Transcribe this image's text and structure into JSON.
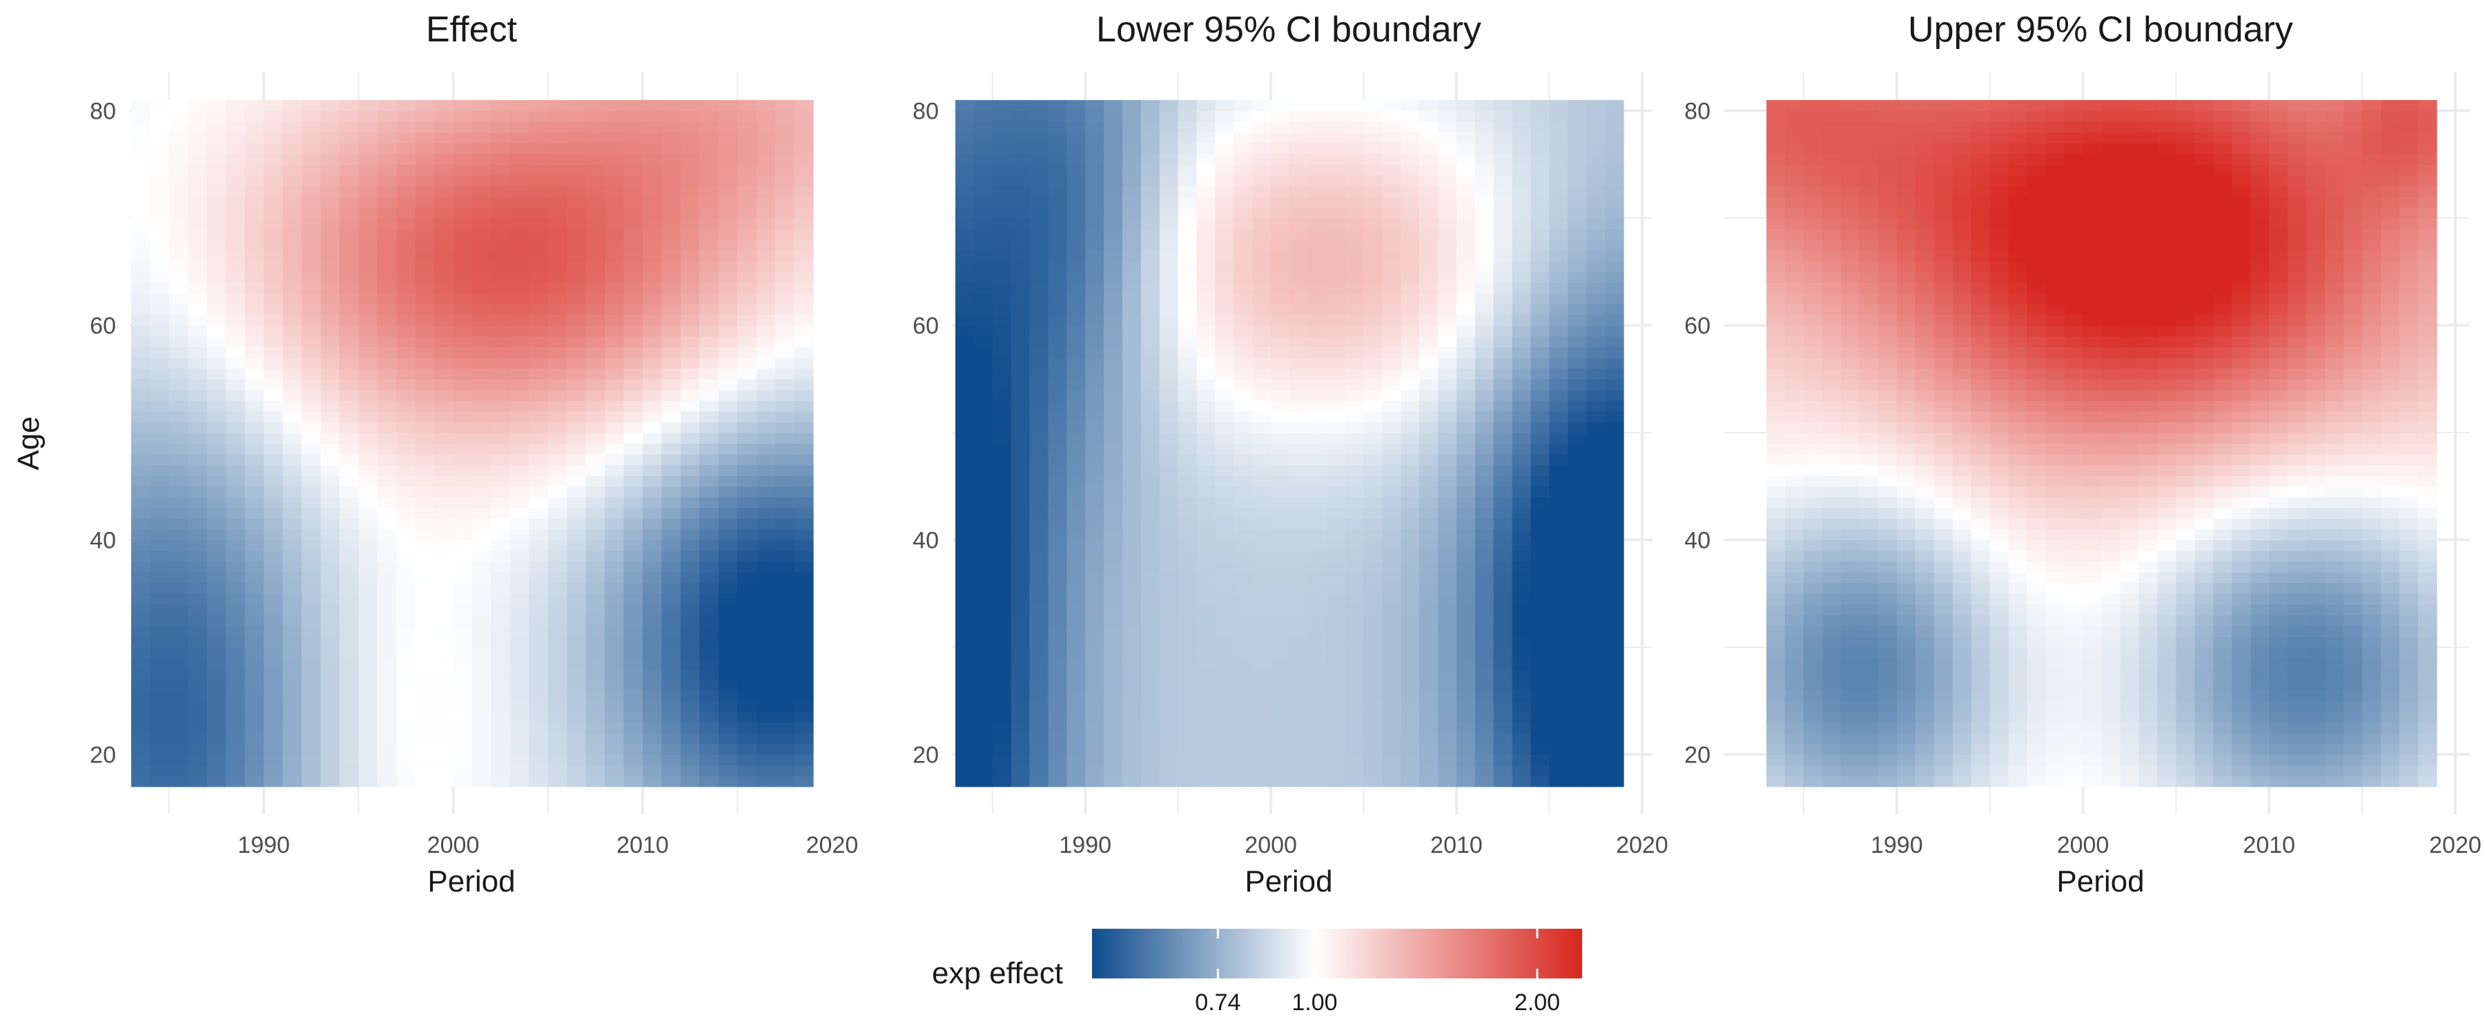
{
  "chart_data": [
    {
      "type": "heatmap",
      "title": "Effect",
      "xlabel": "Period",
      "ylabel": "Age",
      "xlim": [
        1983,
        2019
      ],
      "ylim": [
        17,
        81
      ],
      "xticks": [
        "1990",
        "2000",
        "2010",
        "2020"
      ],
      "yticks": [
        "20",
        "40",
        "60",
        "80"
      ],
      "grid": true,
      "surface": {
        "description_values": "exp effect at selected (period, age) points",
        "points": [
          {
            "period": 2003,
            "age": 66,
            "value": 1.9
          },
          {
            "period": 1985,
            "age": 22,
            "value": 0.64
          },
          {
            "period": 2017,
            "age": 32,
            "value": 0.56
          },
          {
            "period": 1998,
            "age": 25,
            "value": 0.95
          },
          {
            "period": 1984,
            "age": 80,
            "value": 0.95
          },
          {
            "period": 2018,
            "age": 80,
            "value": 1.3
          },
          {
            "period": 1998,
            "age": 40,
            "value": 1.0
          }
        ]
      }
    },
    {
      "type": "heatmap",
      "title": "Lower 95% CI boundary",
      "xlabel": "Period",
      "ylabel": "",
      "xlim": [
        1983,
        2019
      ],
      "ylim": [
        17,
        81
      ],
      "xticks": [
        "1990",
        "2000",
        "2010",
        "2020"
      ],
      "yticks": [
        "20",
        "40",
        "60",
        "80"
      ],
      "grid": true,
      "surface": {
        "points": [
          {
            "period": 2003,
            "age": 66,
            "value": 1.55
          },
          {
            "period": 1983,
            "age": 30,
            "value": 0.58
          },
          {
            "period": 2018,
            "age": 35,
            "value": 0.52
          },
          {
            "period": 1999,
            "age": 28,
            "value": 0.9
          },
          {
            "period": 1983,
            "age": 80,
            "value": 0.62
          },
          {
            "period": 2015,
            "age": 78,
            "value": 1.05
          }
        ]
      }
    },
    {
      "type": "heatmap",
      "title": "Upper 95% CI boundary",
      "xlabel": "Period",
      "ylabel": "",
      "xlim": [
        1983,
        2019
      ],
      "ylim": [
        17,
        81
      ],
      "xticks": [
        "1990",
        "2000",
        "2010",
        "2020"
      ],
      "yticks": [
        "20",
        "40",
        "60",
        "80"
      ],
      "grid": true,
      "surface": {
        "points": [
          {
            "period": 2003,
            "age": 67,
            "value": 2.25
          },
          {
            "period": 2018,
            "age": 80,
            "value": 2.1
          },
          {
            "period": 1987,
            "age": 28,
            "value": 0.7
          },
          {
            "period": 2012,
            "age": 28,
            "value": 0.64
          },
          {
            "period": 1999,
            "age": 20,
            "value": 1.06
          },
          {
            "period": 1983,
            "age": 80,
            "value": 1.25
          }
        ]
      }
    }
  ],
  "legend": {
    "title": "exp effect",
    "ticks": [
      "0.74",
      "1.00",
      "2.00"
    ],
    "tick_values": [
      0.74,
      1.0,
      2.0
    ],
    "range": [
      0.5,
      2.3
    ],
    "placement": "bottom"
  },
  "colors": {
    "low": "#0f4c8d",
    "mid": "#ffffff",
    "high": "#d7261e",
    "grid": "#ebebeb",
    "tick_text": "#4d4d4d",
    "title_text": "#1a1a1a"
  }
}
